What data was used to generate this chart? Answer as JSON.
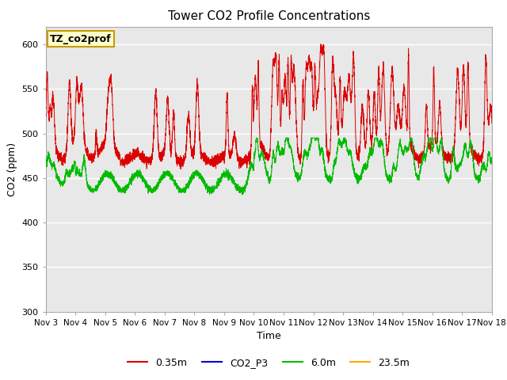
{
  "title": "Tower CO2 Profile Concentrations",
  "xlabel": "Time",
  "ylabel": "CO2 (ppm)",
  "ylim": [
    300,
    620
  ],
  "yticks": [
    300,
    350,
    400,
    450,
    500,
    550,
    600
  ],
  "xlim": [
    3,
    18
  ],
  "xtick_positions": [
    3,
    4,
    5,
    6,
    7,
    8,
    9,
    10,
    11,
    12,
    13,
    14,
    15,
    16,
    17,
    18
  ],
  "xtick_labels": [
    "Nov 3",
    "Nov 4",
    "Nov 5",
    "Nov 6",
    "Nov 7",
    "Nov 8",
    "Nov 9",
    "Nov 10",
    "Nov 11",
    "Nov 12",
    "Nov 13",
    "Nov 14",
    "Nov 15",
    "Nov 16",
    "Nov 17",
    "Nov 18"
  ],
  "plot_bg_color": "#e8e8e8",
  "annotation_text": "TZ_co2prof",
  "annotation_bg": "#ffffcc",
  "annotation_border": "#cc9900",
  "red_color": "#dd0000",
  "green_color": "#00bb00",
  "blue_color": "#0000dd",
  "orange_color": "#ffaa00",
  "grid_color": "#ffffff",
  "title_fontsize": 11,
  "axis_label_fontsize": 9,
  "tick_fontsize": 8,
  "legend_fontsize": 9
}
